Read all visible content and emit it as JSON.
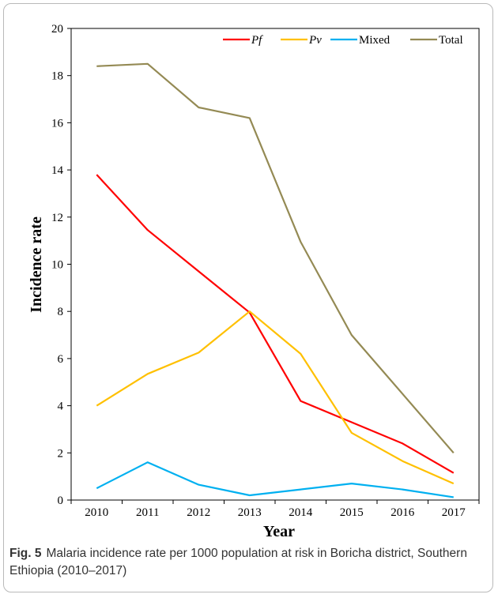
{
  "chart_data": {
    "type": "line",
    "x": [
      "2010",
      "2011",
      "2012",
      "2013",
      "2014",
      "2015",
      "2016",
      "2017"
    ],
    "xlabel": "Year",
    "ylabel": "Incidence rate",
    "ylim": [
      0,
      20
    ],
    "yticks": [
      "0",
      "2",
      "4",
      "6",
      "8",
      "10",
      "12",
      "14",
      "16",
      "18",
      "20"
    ],
    "grid": false,
    "legend_position": "top-right",
    "series": [
      {
        "name": "Pf",
        "italic": true,
        "color": "#ff0000",
        "values": [
          13.8,
          11.45,
          9.7,
          7.95,
          4.2,
          3.3,
          2.4,
          1.15
        ]
      },
      {
        "name": "Pv",
        "italic": true,
        "color": "#ffc000",
        "values": [
          4.0,
          5.35,
          6.25,
          8.0,
          6.2,
          2.85,
          1.65,
          0.7
        ]
      },
      {
        "name": "Mixed",
        "italic": false,
        "color": "#00b0f0",
        "values": [
          0.5,
          1.6,
          0.65,
          0.2,
          0.45,
          0.7,
          0.45,
          0.12
        ]
      },
      {
        "name": "Total",
        "italic": false,
        "color": "#948a54",
        "values": [
          18.4,
          18.5,
          16.65,
          16.2,
          10.95,
          7.0,
          4.5,
          2.0
        ]
      }
    ]
  },
  "caption": {
    "label": "Fig. 5",
    "text": "Malaria incidence rate per 1000 population at risk in Boricha district, Southern Ethiopia (2010–2017)"
  }
}
